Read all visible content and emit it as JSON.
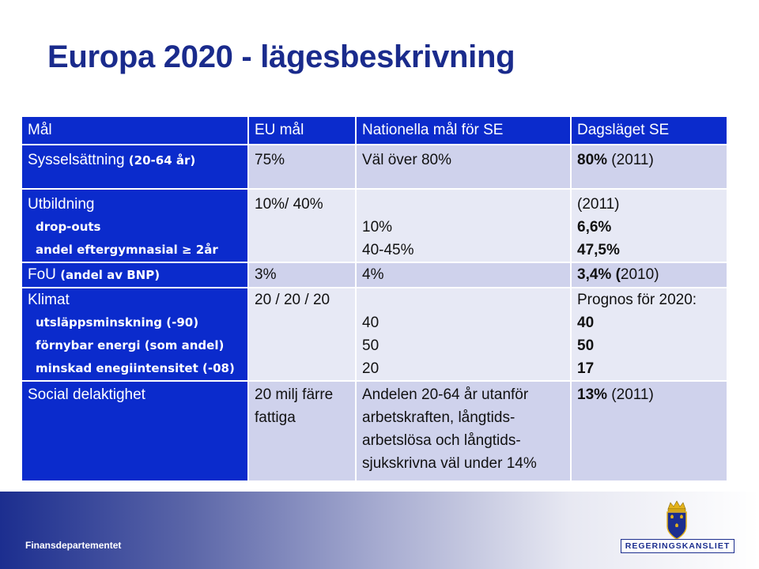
{
  "slide": {
    "title": "Europa 2020 - lägesbeskrivning",
    "footer_label": "Finansdepartementet",
    "logo_text": "REGERINGSKANSLIET"
  },
  "table": {
    "headers": [
      "Mål",
      "EU mål",
      "Nationella mål för SE",
      "Dagsläget SE"
    ],
    "rows": [
      {
        "goal": "Sysselsättning",
        "goal_note": "(20-64  år)",
        "eu": "75%",
        "national": "Väl över 80%",
        "status_bold": "80%",
        "status_rest": " (2011)"
      },
      {
        "goal": "Utbildning",
        "sub1": "drop-outs",
        "sub2": "andel eftergymnasial ≥ 2år",
        "eu": "10%/ 40%",
        "national1": "10%",
        "national2": "40-45%",
        "status_head": "(2011)",
        "status1": "6,6%",
        "status2": "47,5%"
      },
      {
        "goal": "FoU",
        "goal_note": "(andel av BNP)",
        "eu": "3%",
        "national": "4%",
        "status_bold": "3,4% (",
        "status_rest": "2010)"
      },
      {
        "goal": "Klimat",
        "sub1": "utsläppsminskning (-90)",
        "sub2": "förnybar energi (som andel)",
        "sub3": "minskad enegiintensitet (-08)",
        "eu": "20 / 20 / 20",
        "national1": "40",
        "national2": "50",
        "national3": "20",
        "status_head": "Prognos för 2020:",
        "status1": "40",
        "status2": "50",
        "status3": "17"
      },
      {
        "goal": "Social delaktighet",
        "eu1": "20 milj färre",
        "eu2": "fattiga",
        "national1": "Andelen 20-64 år utanför",
        "national2": "arbetskraften, långtids-",
        "national3": "arbetslösa  och långtids-",
        "national4": "sjukskrivna väl under 14%",
        "status_bold": "13%",
        "status_rest": " (2011)"
      }
    ]
  },
  "colors": {
    "title": "#1a2b8c",
    "header_bg": "#0b2bcc",
    "row_shade_a": "#cfd2ec",
    "row_shade_b": "#e7e9f5"
  }
}
